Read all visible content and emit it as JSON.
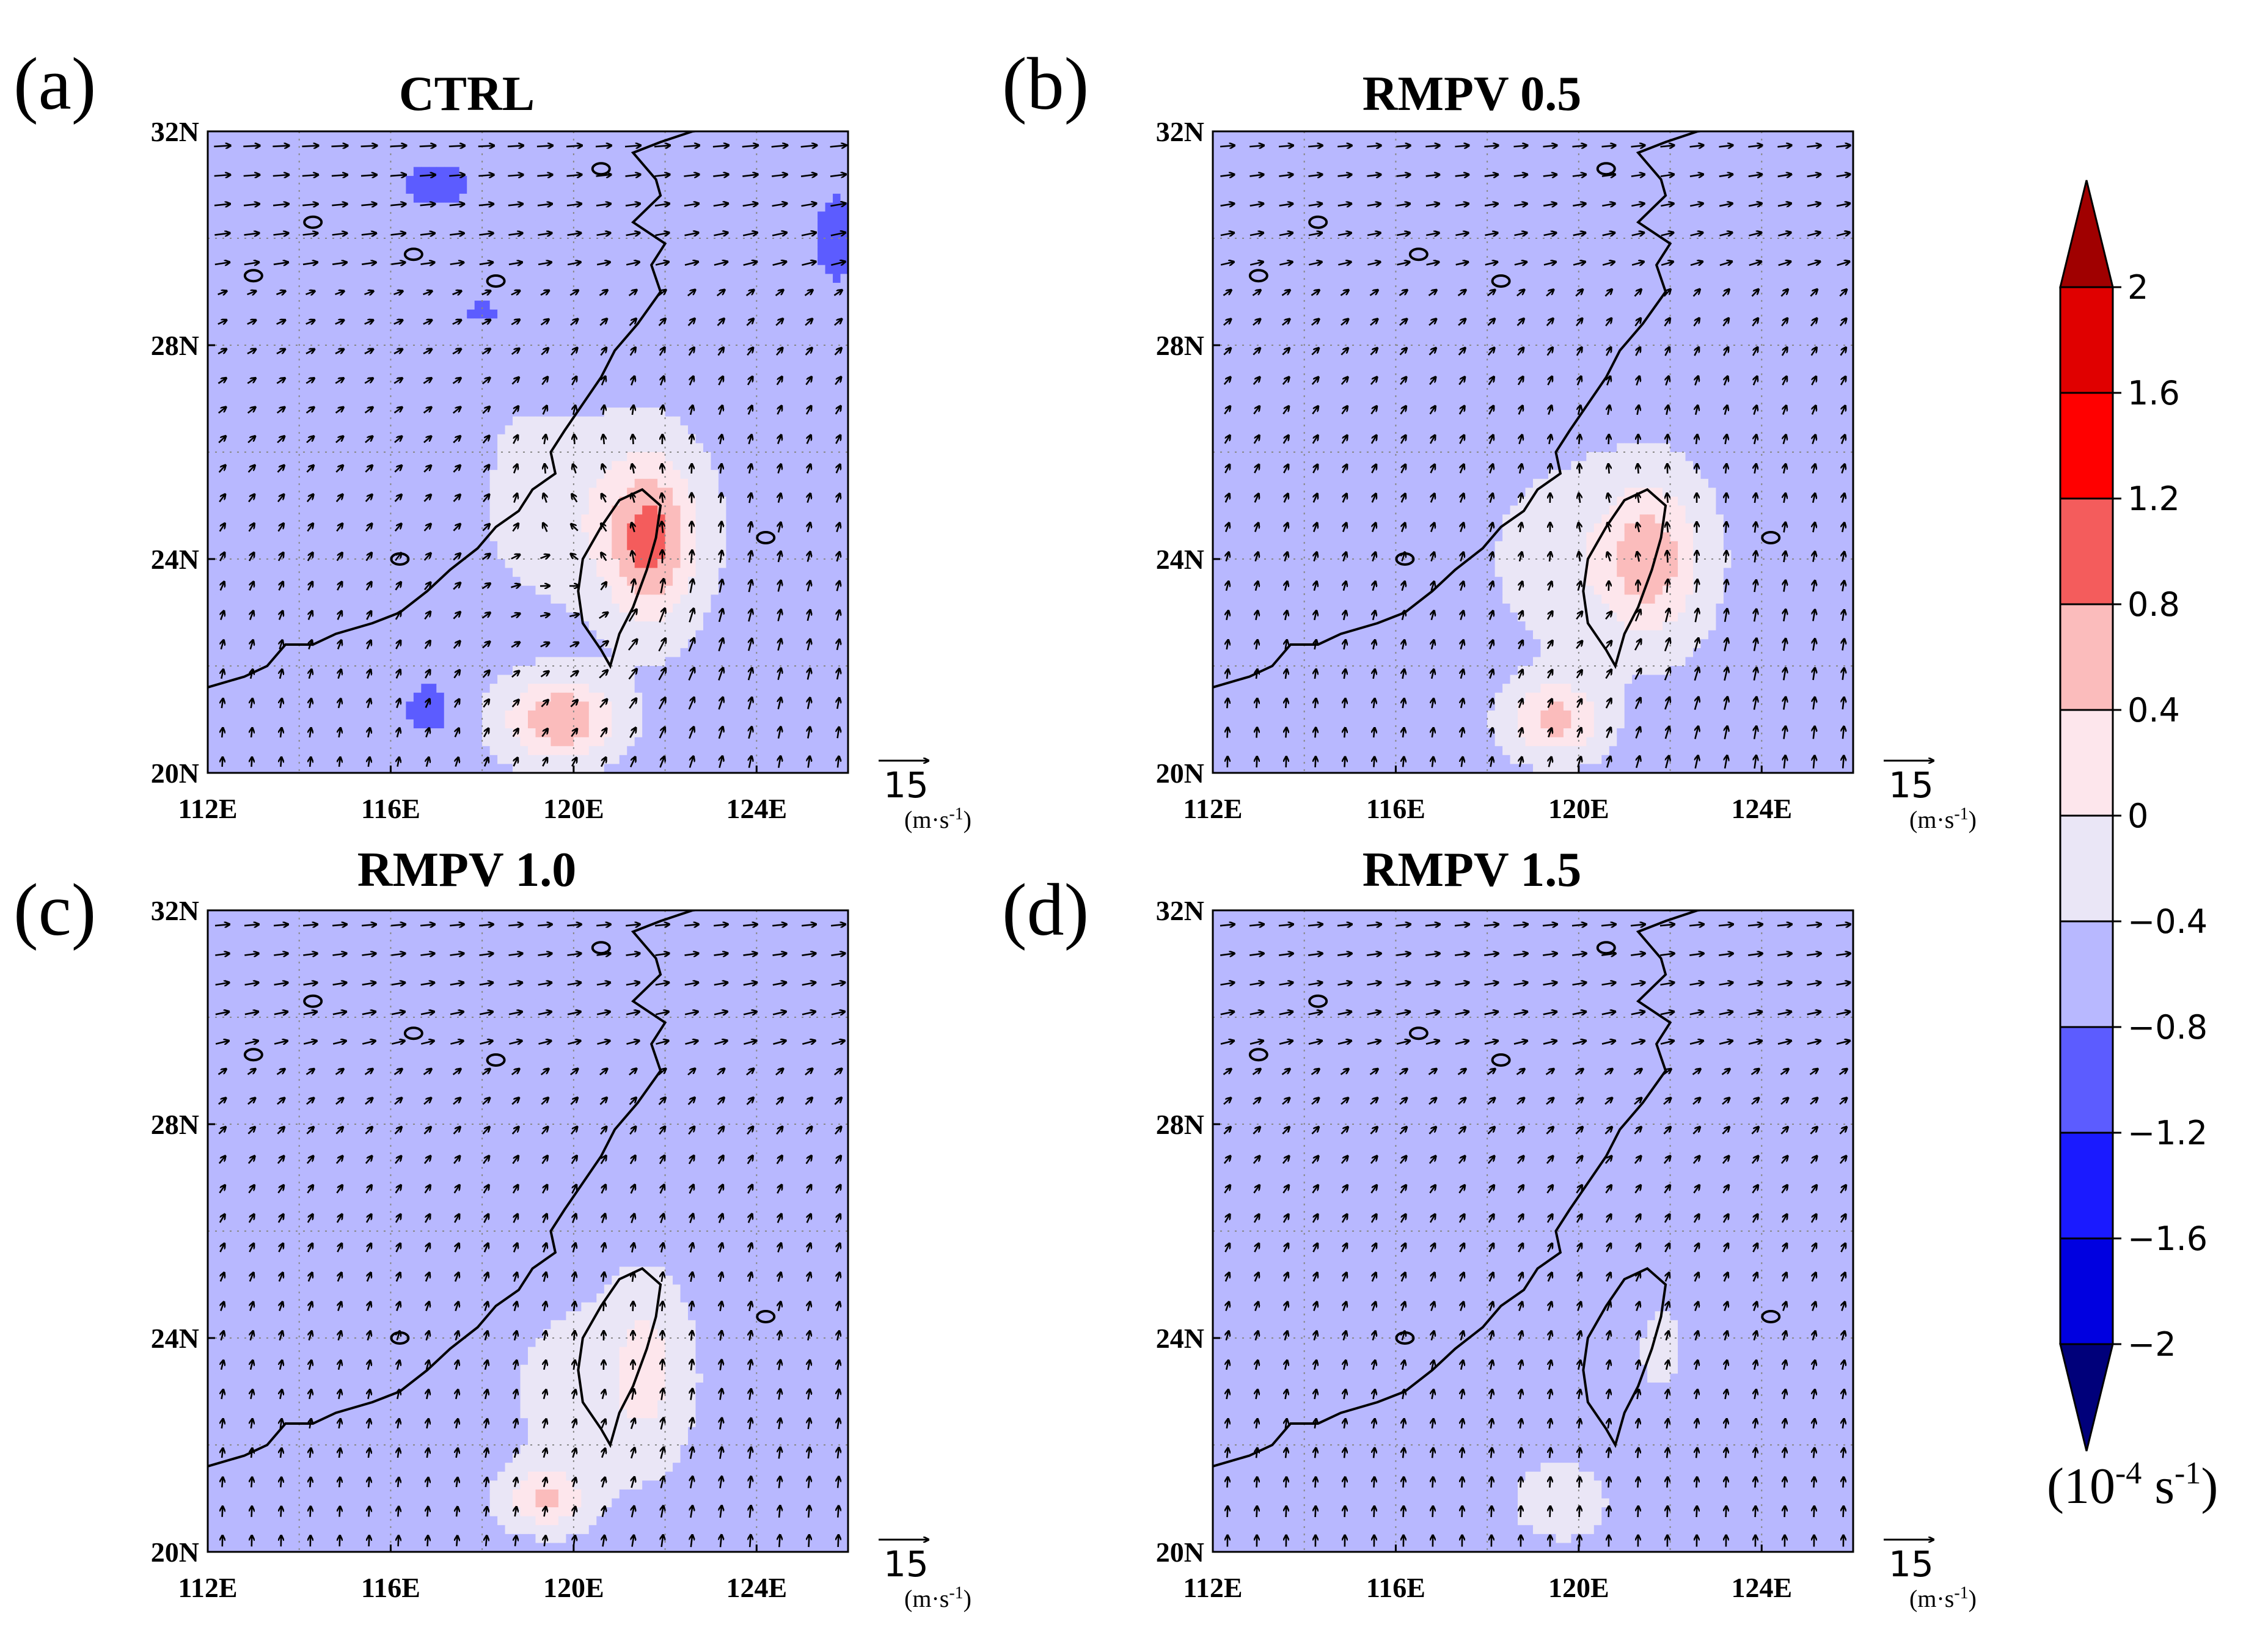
{
  "chart_data": {
    "type": "heatmap",
    "description": "",
    "panels": [
      {
        "letter": "(a)",
        "title": "CTRL",
        "features": [
          {
            "lon": 121.7,
            "lat": 24.3,
            "amp": 1.25,
            "sx": 0.95,
            "sy": 1.5
          },
          {
            "lon": 119.7,
            "lat": 21.0,
            "amp": 1.35,
            "sx": 1.2,
            "sy": 0.75
          },
          {
            "lon": 120.5,
            "lat": 24.8,
            "amp": 0.45,
            "sx": 2.2,
            "sy": 1.6
          },
          {
            "lon": 117.5,
            "lat": 27.0,
            "amp": 0.12,
            "sx": 2.5,
            "sy": 1.2
          },
          {
            "lon": 117.0,
            "lat": 31.0,
            "amp": -0.35,
            "sx": 1.3,
            "sy": 0.6
          },
          {
            "lon": 125.8,
            "lat": 30.0,
            "amp": -0.45,
            "sx": 0.6,
            "sy": 1.0
          },
          {
            "lon": 116.8,
            "lat": 21.2,
            "amp": -0.5,
            "sx": 0.5,
            "sy": 0.5
          },
          {
            "lon": 118.0,
            "lat": 28.6,
            "amp": -0.3,
            "sx": 0.9,
            "sy": 0.5
          }
        ],
        "wind": {
          "kind": "cyclone",
          "lon": 120.8,
          "lat": 23.5,
          "strength": 9,
          "bg_u": 4,
          "bg_v": 5
        }
      },
      {
        "letter": "(b)",
        "title": "RMPV 0.5",
        "features": [
          {
            "lon": 121.6,
            "lat": 24.0,
            "amp": 0.9,
            "sx": 1.0,
            "sy": 1.4
          },
          {
            "lon": 119.5,
            "lat": 21.0,
            "amp": 1.1,
            "sx": 1.0,
            "sy": 0.7
          },
          {
            "lon": 120.5,
            "lat": 24.0,
            "amp": 0.45,
            "sx": 2.2,
            "sy": 1.7
          },
          {
            "lon": 117.5,
            "lat": 27.5,
            "amp": 0.12,
            "sx": 2.0,
            "sy": 1.2
          },
          {
            "lon": 124.5,
            "lat": 20.8,
            "amp": 0.15,
            "sx": 1.6,
            "sy": 0.8
          }
        ],
        "wind": {
          "kind": "cyclone",
          "lon": 121.0,
          "lat": 23.3,
          "strength": 6,
          "bg_u": 3,
          "bg_v": 6
        }
      },
      {
        "letter": "(c)",
        "title": "RMPV 1.0",
        "features": [
          {
            "lon": 121.6,
            "lat": 23.5,
            "amp": 0.55,
            "sx": 0.8,
            "sy": 1.5
          },
          {
            "lon": 119.4,
            "lat": 21.0,
            "amp": 0.95,
            "sx": 0.9,
            "sy": 0.55
          },
          {
            "lon": 120.5,
            "lat": 23.0,
            "amp": 0.3,
            "sx": 2.0,
            "sy": 1.8
          },
          {
            "lon": 113.5,
            "lat": 28.0,
            "amp": 0.12,
            "sx": 1.2,
            "sy": 1.0
          },
          {
            "lon": 124.5,
            "lat": 20.8,
            "amp": 0.12,
            "sx": 1.4,
            "sy": 0.8
          }
        ],
        "wind": {
          "kind": "weak",
          "lon": 121.0,
          "lat": 23.0,
          "strength": 3,
          "bg_u": 3,
          "bg_v": 6
        }
      },
      {
        "letter": "(d)",
        "title": "RMPV 1.5",
        "features": [
          {
            "lon": 119.6,
            "lat": 20.9,
            "amp": 0.5,
            "sx": 0.9,
            "sy": 0.6
          },
          {
            "lon": 121.8,
            "lat": 23.8,
            "amp": 0.3,
            "sx": 0.5,
            "sy": 0.8
          },
          {
            "lon": 114.0,
            "lat": 28.5,
            "amp": 0.12,
            "sx": 1.6,
            "sy": 1.0
          },
          {
            "lon": 119.0,
            "lat": 22.5,
            "amp": 0.12,
            "sx": 2.0,
            "sy": 1.0
          },
          {
            "lon": 125.5,
            "lat": 28.2,
            "amp": 0.12,
            "sx": 0.6,
            "sy": 0.8
          }
        ],
        "wind": {
          "kind": "none",
          "lon": 121.0,
          "lat": 23.0,
          "strength": 0,
          "bg_u": 3,
          "bg_v": 6
        }
      }
    ],
    "x_ticks": [
      "112E",
      "116E",
      "120E",
      "124E"
    ],
    "y_ticks": [
      "32N",
      "28N",
      "24N",
      "20N"
    ],
    "lon_range": [
      112,
      126
    ],
    "lat_range": [
      20,
      32
    ],
    "reference_vector": {
      "value": "15",
      "unit": "(m·s",
      "unit_sup": "-1",
      "unit_close": ")"
    },
    "colorbar": {
      "levels": [
        -2,
        -1.6,
        -1.2,
        -0.8,
        -0.4,
        0,
        0.4,
        0.8,
        1.2,
        1.6,
        2
      ],
      "tick_labels": [
        "2",
        "1.6",
        "1.2",
        "0.8",
        "0.4",
        "0",
        "−0.4",
        "−0.8",
        "−1.2",
        "−1.6",
        "−2"
      ],
      "colors_low_to_high": [
        "#00007a",
        "#0000a8",
        "#0000e0",
        "#1a1aff",
        "#5c5cff",
        "#b8b8ff",
        "#eae6f6",
        "#fde6ec",
        "#fbbcbc",
        "#f45c5c",
        "#ff0000",
        "#e00000",
        "#a00000"
      ],
      "unit_prefix": "(10",
      "unit_sup": "-4",
      "unit_mid": " s",
      "unit_sup2": "-1",
      "unit_close": ")"
    }
  }
}
